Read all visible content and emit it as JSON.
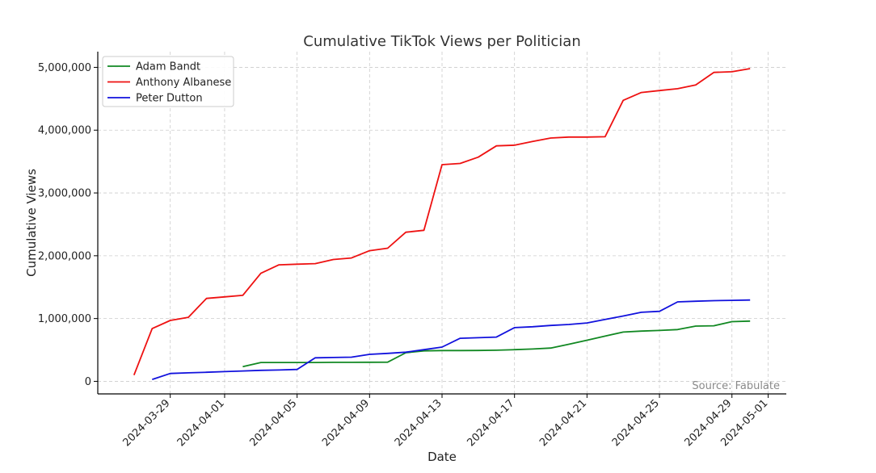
{
  "chart_data": {
    "type": "line",
    "title": "Cumulative TikTok Views per Politician",
    "xlabel": "Date",
    "ylabel": "Cumulative Views",
    "xlim": [
      "2024-03-25",
      "2024-05-02"
    ],
    "ylim": [
      -200000,
      5250000
    ],
    "x_ticks": [
      "2024-03-29",
      "2024-04-01",
      "2024-04-05",
      "2024-04-09",
      "2024-04-13",
      "2024-04-17",
      "2024-04-21",
      "2024-04-25",
      "2024-04-29",
      "2024-05-01"
    ],
    "y_ticks": [
      0,
      1000000,
      2000000,
      3000000,
      4000000,
      5000000
    ],
    "y_tick_labels": [
      "0",
      "1,000,000",
      "2,000,000",
      "3,000,000",
      "4,000,000",
      "5,000,000"
    ],
    "grid": true,
    "legend_position": "top-left",
    "annotation": "Source: Fabulate",
    "series": [
      {
        "name": "Adam Bandt",
        "color": "#118822",
        "points": [
          [
            "2024-04-02",
            235000
          ],
          [
            "2024-04-03",
            300000
          ],
          [
            "2024-04-04",
            300000
          ],
          [
            "2024-04-05",
            300000
          ],
          [
            "2024-04-06",
            300000
          ],
          [
            "2024-04-07",
            302000
          ],
          [
            "2024-04-08",
            303000
          ],
          [
            "2024-04-09",
            304000
          ],
          [
            "2024-04-10",
            305000
          ],
          [
            "2024-04-11",
            455000
          ],
          [
            "2024-04-12",
            485000
          ],
          [
            "2024-04-13",
            490000
          ],
          [
            "2024-04-14",
            490000
          ],
          [
            "2024-04-15",
            492000
          ],
          [
            "2024-04-16",
            495000
          ],
          [
            "2024-04-17",
            505000
          ],
          [
            "2024-04-18",
            515000
          ],
          [
            "2024-04-19",
            530000
          ],
          [
            "2024-04-20",
            590000
          ],
          [
            "2024-04-21",
            655000
          ],
          [
            "2024-04-22",
            720000
          ],
          [
            "2024-04-23",
            785000
          ],
          [
            "2024-04-24",
            800000
          ],
          [
            "2024-04-25",
            810000
          ],
          [
            "2024-04-26",
            825000
          ],
          [
            "2024-04-27",
            880000
          ],
          [
            "2024-04-28",
            885000
          ],
          [
            "2024-04-29",
            950000
          ],
          [
            "2024-04-30",
            960000
          ]
        ]
      },
      {
        "name": "Anthony Albanese",
        "color": "#ee1111",
        "points": [
          [
            "2024-03-27",
            100000
          ],
          [
            "2024-03-28",
            840000
          ],
          [
            "2024-03-29",
            970000
          ],
          [
            "2024-03-30",
            1020000
          ],
          [
            "2024-03-31",
            1320000
          ],
          [
            "2024-04-01",
            1345000
          ],
          [
            "2024-04-02",
            1370000
          ],
          [
            "2024-04-03",
            1720000
          ],
          [
            "2024-04-04",
            1855000
          ],
          [
            "2024-04-05",
            1865000
          ],
          [
            "2024-04-06",
            1875000
          ],
          [
            "2024-04-07",
            1940000
          ],
          [
            "2024-04-08",
            1965000
          ],
          [
            "2024-04-09",
            2080000
          ],
          [
            "2024-04-10",
            2120000
          ],
          [
            "2024-04-11",
            2375000
          ],
          [
            "2024-04-12",
            2405000
          ],
          [
            "2024-04-13",
            3450000
          ],
          [
            "2024-04-14",
            3470000
          ],
          [
            "2024-04-15",
            3570000
          ],
          [
            "2024-04-16",
            3750000
          ],
          [
            "2024-04-17",
            3760000
          ],
          [
            "2024-04-18",
            3820000
          ],
          [
            "2024-04-19",
            3875000
          ],
          [
            "2024-04-20",
            3890000
          ],
          [
            "2024-04-21",
            3890000
          ],
          [
            "2024-04-22",
            3895000
          ],
          [
            "2024-04-23",
            4475000
          ],
          [
            "2024-04-24",
            4600000
          ],
          [
            "2024-04-25",
            4630000
          ],
          [
            "2024-04-26",
            4660000
          ],
          [
            "2024-04-27",
            4720000
          ],
          [
            "2024-04-28",
            4920000
          ],
          [
            "2024-04-29",
            4930000
          ],
          [
            "2024-04-30",
            4980000
          ]
        ]
      },
      {
        "name": "Peter Dutton",
        "color": "#1111dd",
        "points": [
          [
            "2024-03-28",
            30000
          ],
          [
            "2024-03-29",
            125000
          ],
          [
            "2024-03-30",
            135000
          ],
          [
            "2024-03-31",
            145000
          ],
          [
            "2024-04-01",
            155000
          ],
          [
            "2024-04-02",
            165000
          ],
          [
            "2024-04-03",
            175000
          ],
          [
            "2024-04-04",
            180000
          ],
          [
            "2024-04-05",
            190000
          ],
          [
            "2024-04-06",
            375000
          ],
          [
            "2024-04-07",
            380000
          ],
          [
            "2024-04-08",
            385000
          ],
          [
            "2024-04-09",
            430000
          ],
          [
            "2024-04-10",
            445000
          ],
          [
            "2024-04-11",
            465000
          ],
          [
            "2024-04-12",
            505000
          ],
          [
            "2024-04-13",
            545000
          ],
          [
            "2024-04-14",
            685000
          ],
          [
            "2024-04-15",
            695000
          ],
          [
            "2024-04-16",
            705000
          ],
          [
            "2024-04-17",
            855000
          ],
          [
            "2024-04-18",
            870000
          ],
          [
            "2024-04-19",
            890000
          ],
          [
            "2024-04-20",
            905000
          ],
          [
            "2024-04-21",
            930000
          ],
          [
            "2024-04-22",
            985000
          ],
          [
            "2024-04-23",
            1040000
          ],
          [
            "2024-04-24",
            1100000
          ],
          [
            "2024-04-25",
            1115000
          ],
          [
            "2024-04-26",
            1265000
          ],
          [
            "2024-04-27",
            1275000
          ],
          [
            "2024-04-28",
            1285000
          ],
          [
            "2024-04-29",
            1290000
          ],
          [
            "2024-04-30",
            1295000
          ]
        ]
      }
    ]
  }
}
